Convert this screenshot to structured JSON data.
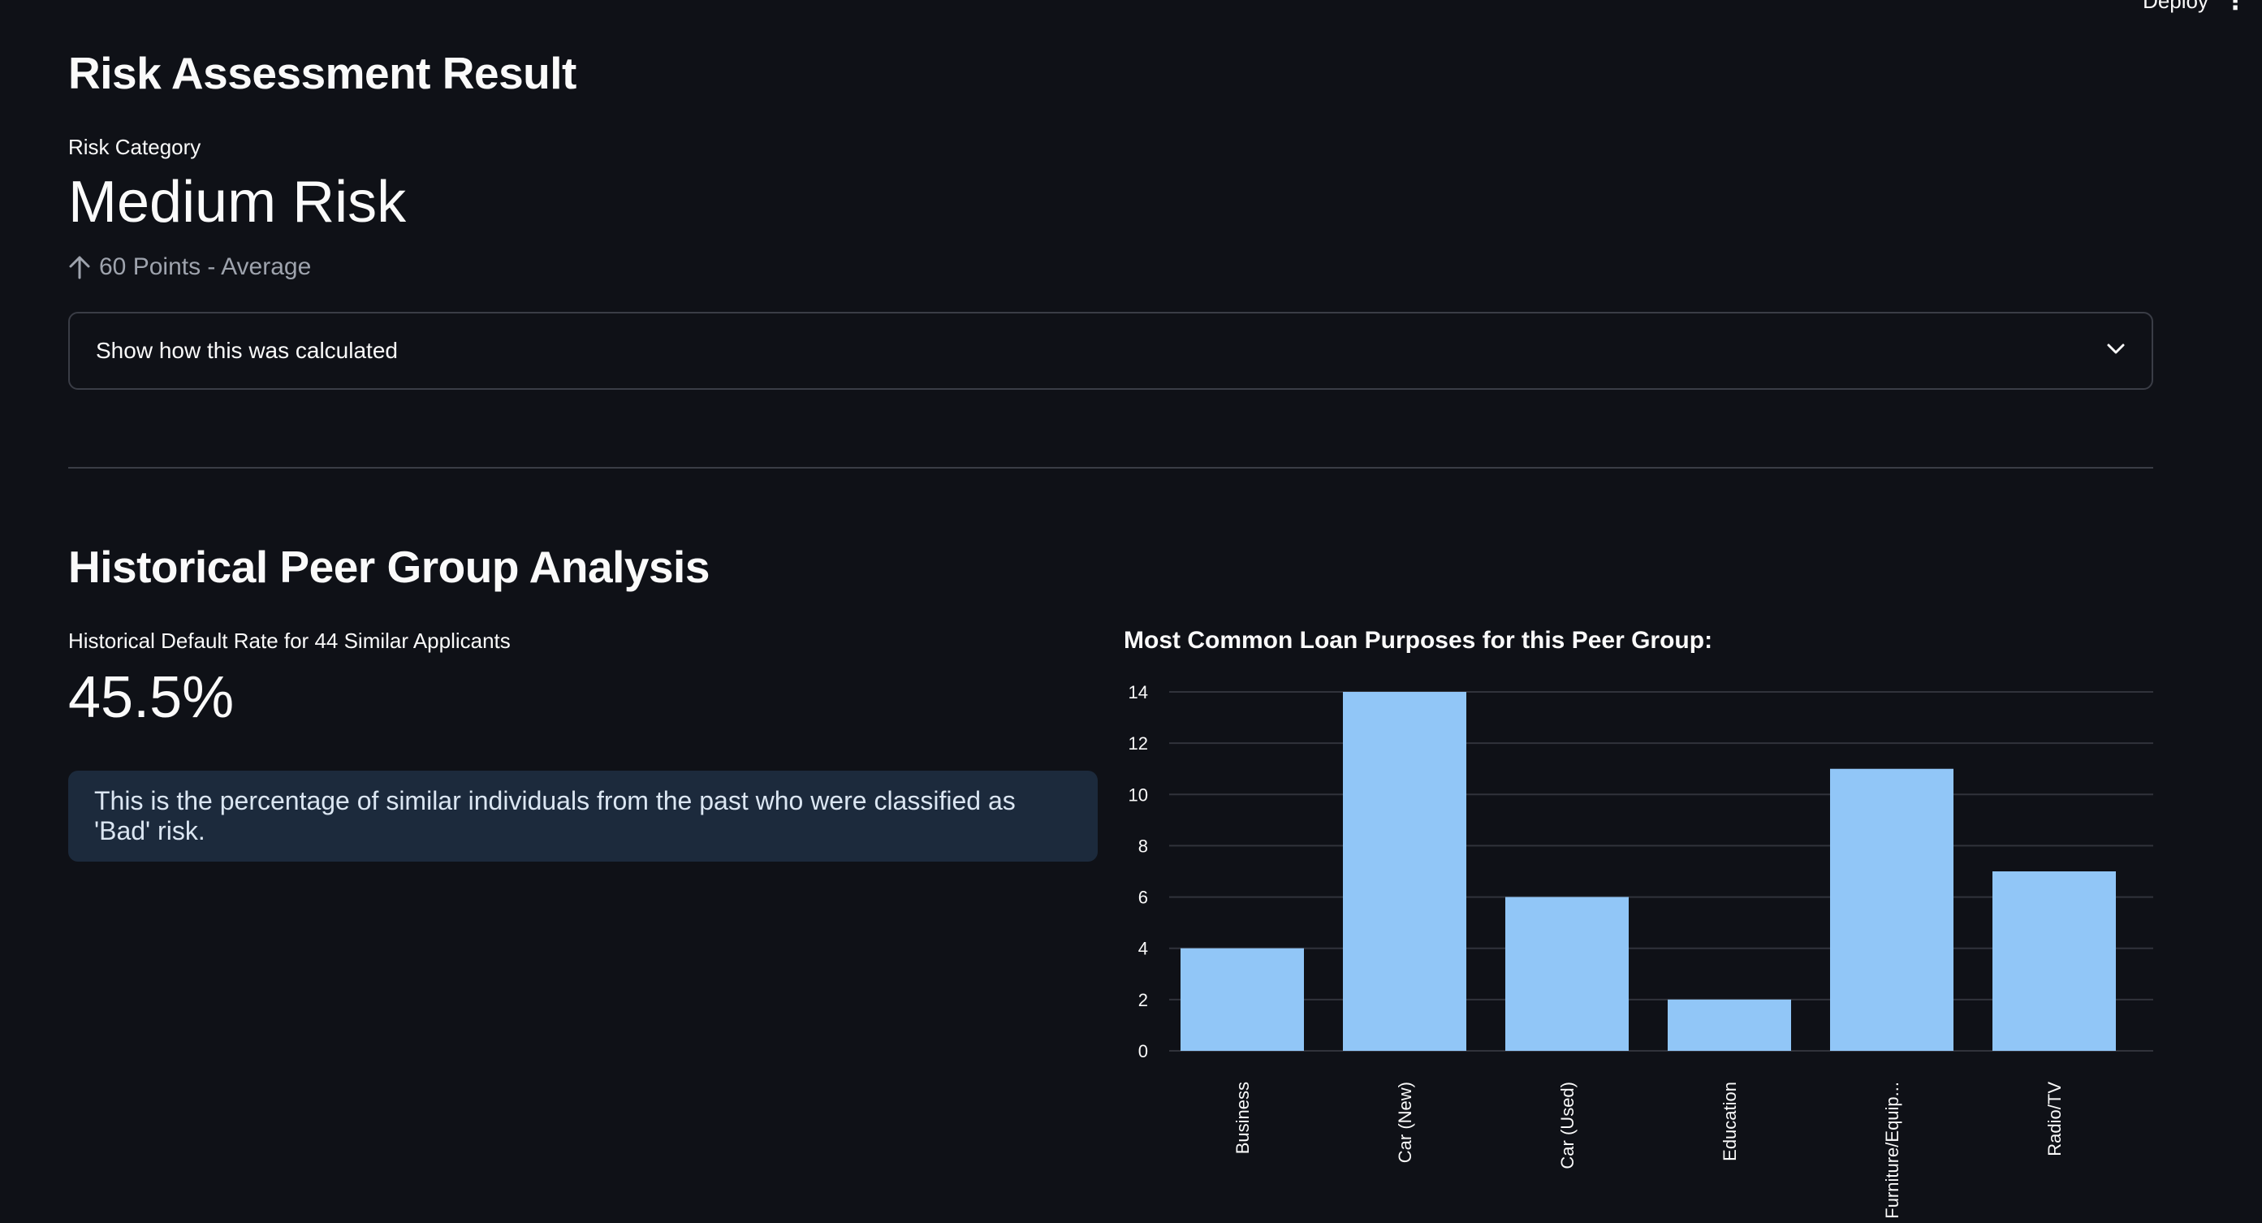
{
  "header": {
    "deploy_label": "Deploy",
    "menu_icon": "kebab-menu-icon"
  },
  "risk": {
    "title": "Risk Assessment Result",
    "metric_label": "Risk Category",
    "metric_value": "Medium Risk",
    "delta_text": "60 Points - Average",
    "delta_icon": "arrow-up-icon",
    "expander_label": "Show how this was calculated",
    "expander_icon": "chevron-down-icon"
  },
  "peer": {
    "title": "Historical Peer Group Analysis",
    "metric_label": "Historical Default Rate for 44 Similar Applicants",
    "metric_value": "45.5%",
    "info_text": "This is the percentage of similar individuals from the past who were classified as 'Bad' risk."
  },
  "chart_data": {
    "type": "bar",
    "title": "Most Common Loan Purposes for this Peer Group:",
    "categories": [
      "Business",
      "Car (New)",
      "Car (Used)",
      "Education",
      "Furniture/Equip...",
      "Radio/TV"
    ],
    "values": [
      4,
      14,
      6,
      2,
      11,
      7
    ],
    "yticks": [
      0,
      2,
      4,
      6,
      8,
      10,
      12,
      14
    ],
    "ylim": [
      0,
      14
    ],
    "grid": true,
    "bar_color": "#91c6f7",
    "grid_color": "#31333b"
  },
  "colors": {
    "background": "#0f1117",
    "info_bg": "#1c2a3c",
    "border": "#3a3d46"
  }
}
